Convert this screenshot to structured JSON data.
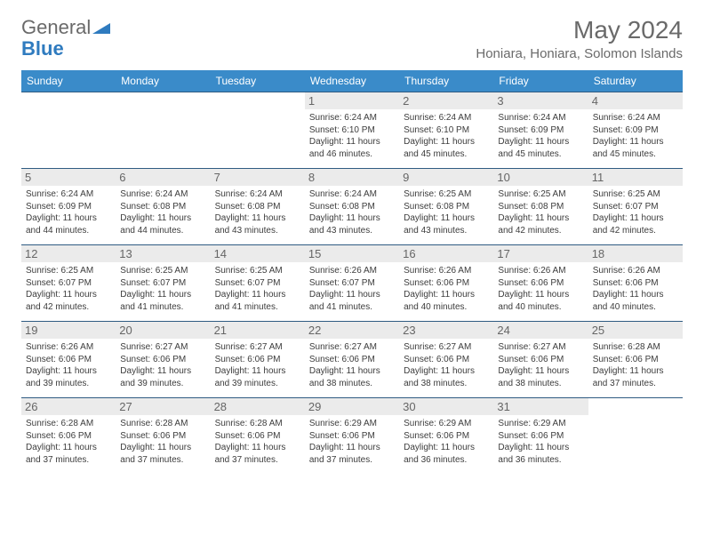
{
  "brand": {
    "text1": "General",
    "text2": "Blue",
    "icon_color": "#2f7bbf"
  },
  "title": "May 2024",
  "location": "Honiara, Honiara, Solomon Islands",
  "colors": {
    "header_bg": "#3a8bc9",
    "header_text": "#ffffff",
    "row_border": "#2f5b82",
    "daynum_bg": "#ebebeb",
    "text": "#3c3c3c"
  },
  "weekdays": [
    "Sunday",
    "Monday",
    "Tuesday",
    "Wednesday",
    "Thursday",
    "Friday",
    "Saturday"
  ],
  "weeks": [
    [
      null,
      null,
      null,
      {
        "n": "1",
        "sr": "6:24 AM",
        "ss": "6:10 PM",
        "dl": "11 hours and 46 minutes."
      },
      {
        "n": "2",
        "sr": "6:24 AM",
        "ss": "6:10 PM",
        "dl": "11 hours and 45 minutes."
      },
      {
        "n": "3",
        "sr": "6:24 AM",
        "ss": "6:09 PM",
        "dl": "11 hours and 45 minutes."
      },
      {
        "n": "4",
        "sr": "6:24 AM",
        "ss": "6:09 PM",
        "dl": "11 hours and 45 minutes."
      }
    ],
    [
      {
        "n": "5",
        "sr": "6:24 AM",
        "ss": "6:09 PM",
        "dl": "11 hours and 44 minutes."
      },
      {
        "n": "6",
        "sr": "6:24 AM",
        "ss": "6:08 PM",
        "dl": "11 hours and 44 minutes."
      },
      {
        "n": "7",
        "sr": "6:24 AM",
        "ss": "6:08 PM",
        "dl": "11 hours and 43 minutes."
      },
      {
        "n": "8",
        "sr": "6:24 AM",
        "ss": "6:08 PM",
        "dl": "11 hours and 43 minutes."
      },
      {
        "n": "9",
        "sr": "6:25 AM",
        "ss": "6:08 PM",
        "dl": "11 hours and 43 minutes."
      },
      {
        "n": "10",
        "sr": "6:25 AM",
        "ss": "6:08 PM",
        "dl": "11 hours and 42 minutes."
      },
      {
        "n": "11",
        "sr": "6:25 AM",
        "ss": "6:07 PM",
        "dl": "11 hours and 42 minutes."
      }
    ],
    [
      {
        "n": "12",
        "sr": "6:25 AM",
        "ss": "6:07 PM",
        "dl": "11 hours and 42 minutes."
      },
      {
        "n": "13",
        "sr": "6:25 AM",
        "ss": "6:07 PM",
        "dl": "11 hours and 41 minutes."
      },
      {
        "n": "14",
        "sr": "6:25 AM",
        "ss": "6:07 PM",
        "dl": "11 hours and 41 minutes."
      },
      {
        "n": "15",
        "sr": "6:26 AM",
        "ss": "6:07 PM",
        "dl": "11 hours and 41 minutes."
      },
      {
        "n": "16",
        "sr": "6:26 AM",
        "ss": "6:06 PM",
        "dl": "11 hours and 40 minutes."
      },
      {
        "n": "17",
        "sr": "6:26 AM",
        "ss": "6:06 PM",
        "dl": "11 hours and 40 minutes."
      },
      {
        "n": "18",
        "sr": "6:26 AM",
        "ss": "6:06 PM",
        "dl": "11 hours and 40 minutes."
      }
    ],
    [
      {
        "n": "19",
        "sr": "6:26 AM",
        "ss": "6:06 PM",
        "dl": "11 hours and 39 minutes."
      },
      {
        "n": "20",
        "sr": "6:27 AM",
        "ss": "6:06 PM",
        "dl": "11 hours and 39 minutes."
      },
      {
        "n": "21",
        "sr": "6:27 AM",
        "ss": "6:06 PM",
        "dl": "11 hours and 39 minutes."
      },
      {
        "n": "22",
        "sr": "6:27 AM",
        "ss": "6:06 PM",
        "dl": "11 hours and 38 minutes."
      },
      {
        "n": "23",
        "sr": "6:27 AM",
        "ss": "6:06 PM",
        "dl": "11 hours and 38 minutes."
      },
      {
        "n": "24",
        "sr": "6:27 AM",
        "ss": "6:06 PM",
        "dl": "11 hours and 38 minutes."
      },
      {
        "n": "25",
        "sr": "6:28 AM",
        "ss": "6:06 PM",
        "dl": "11 hours and 37 minutes."
      }
    ],
    [
      {
        "n": "26",
        "sr": "6:28 AM",
        "ss": "6:06 PM",
        "dl": "11 hours and 37 minutes."
      },
      {
        "n": "27",
        "sr": "6:28 AM",
        "ss": "6:06 PM",
        "dl": "11 hours and 37 minutes."
      },
      {
        "n": "28",
        "sr": "6:28 AM",
        "ss": "6:06 PM",
        "dl": "11 hours and 37 minutes."
      },
      {
        "n": "29",
        "sr": "6:29 AM",
        "ss": "6:06 PM",
        "dl": "11 hours and 37 minutes."
      },
      {
        "n": "30",
        "sr": "6:29 AM",
        "ss": "6:06 PM",
        "dl": "11 hours and 36 minutes."
      },
      {
        "n": "31",
        "sr": "6:29 AM",
        "ss": "6:06 PM",
        "dl": "11 hours and 36 minutes."
      },
      null
    ]
  ],
  "labels": {
    "sunrise": "Sunrise: ",
    "sunset": "Sunset: ",
    "daylight": "Daylight: "
  }
}
